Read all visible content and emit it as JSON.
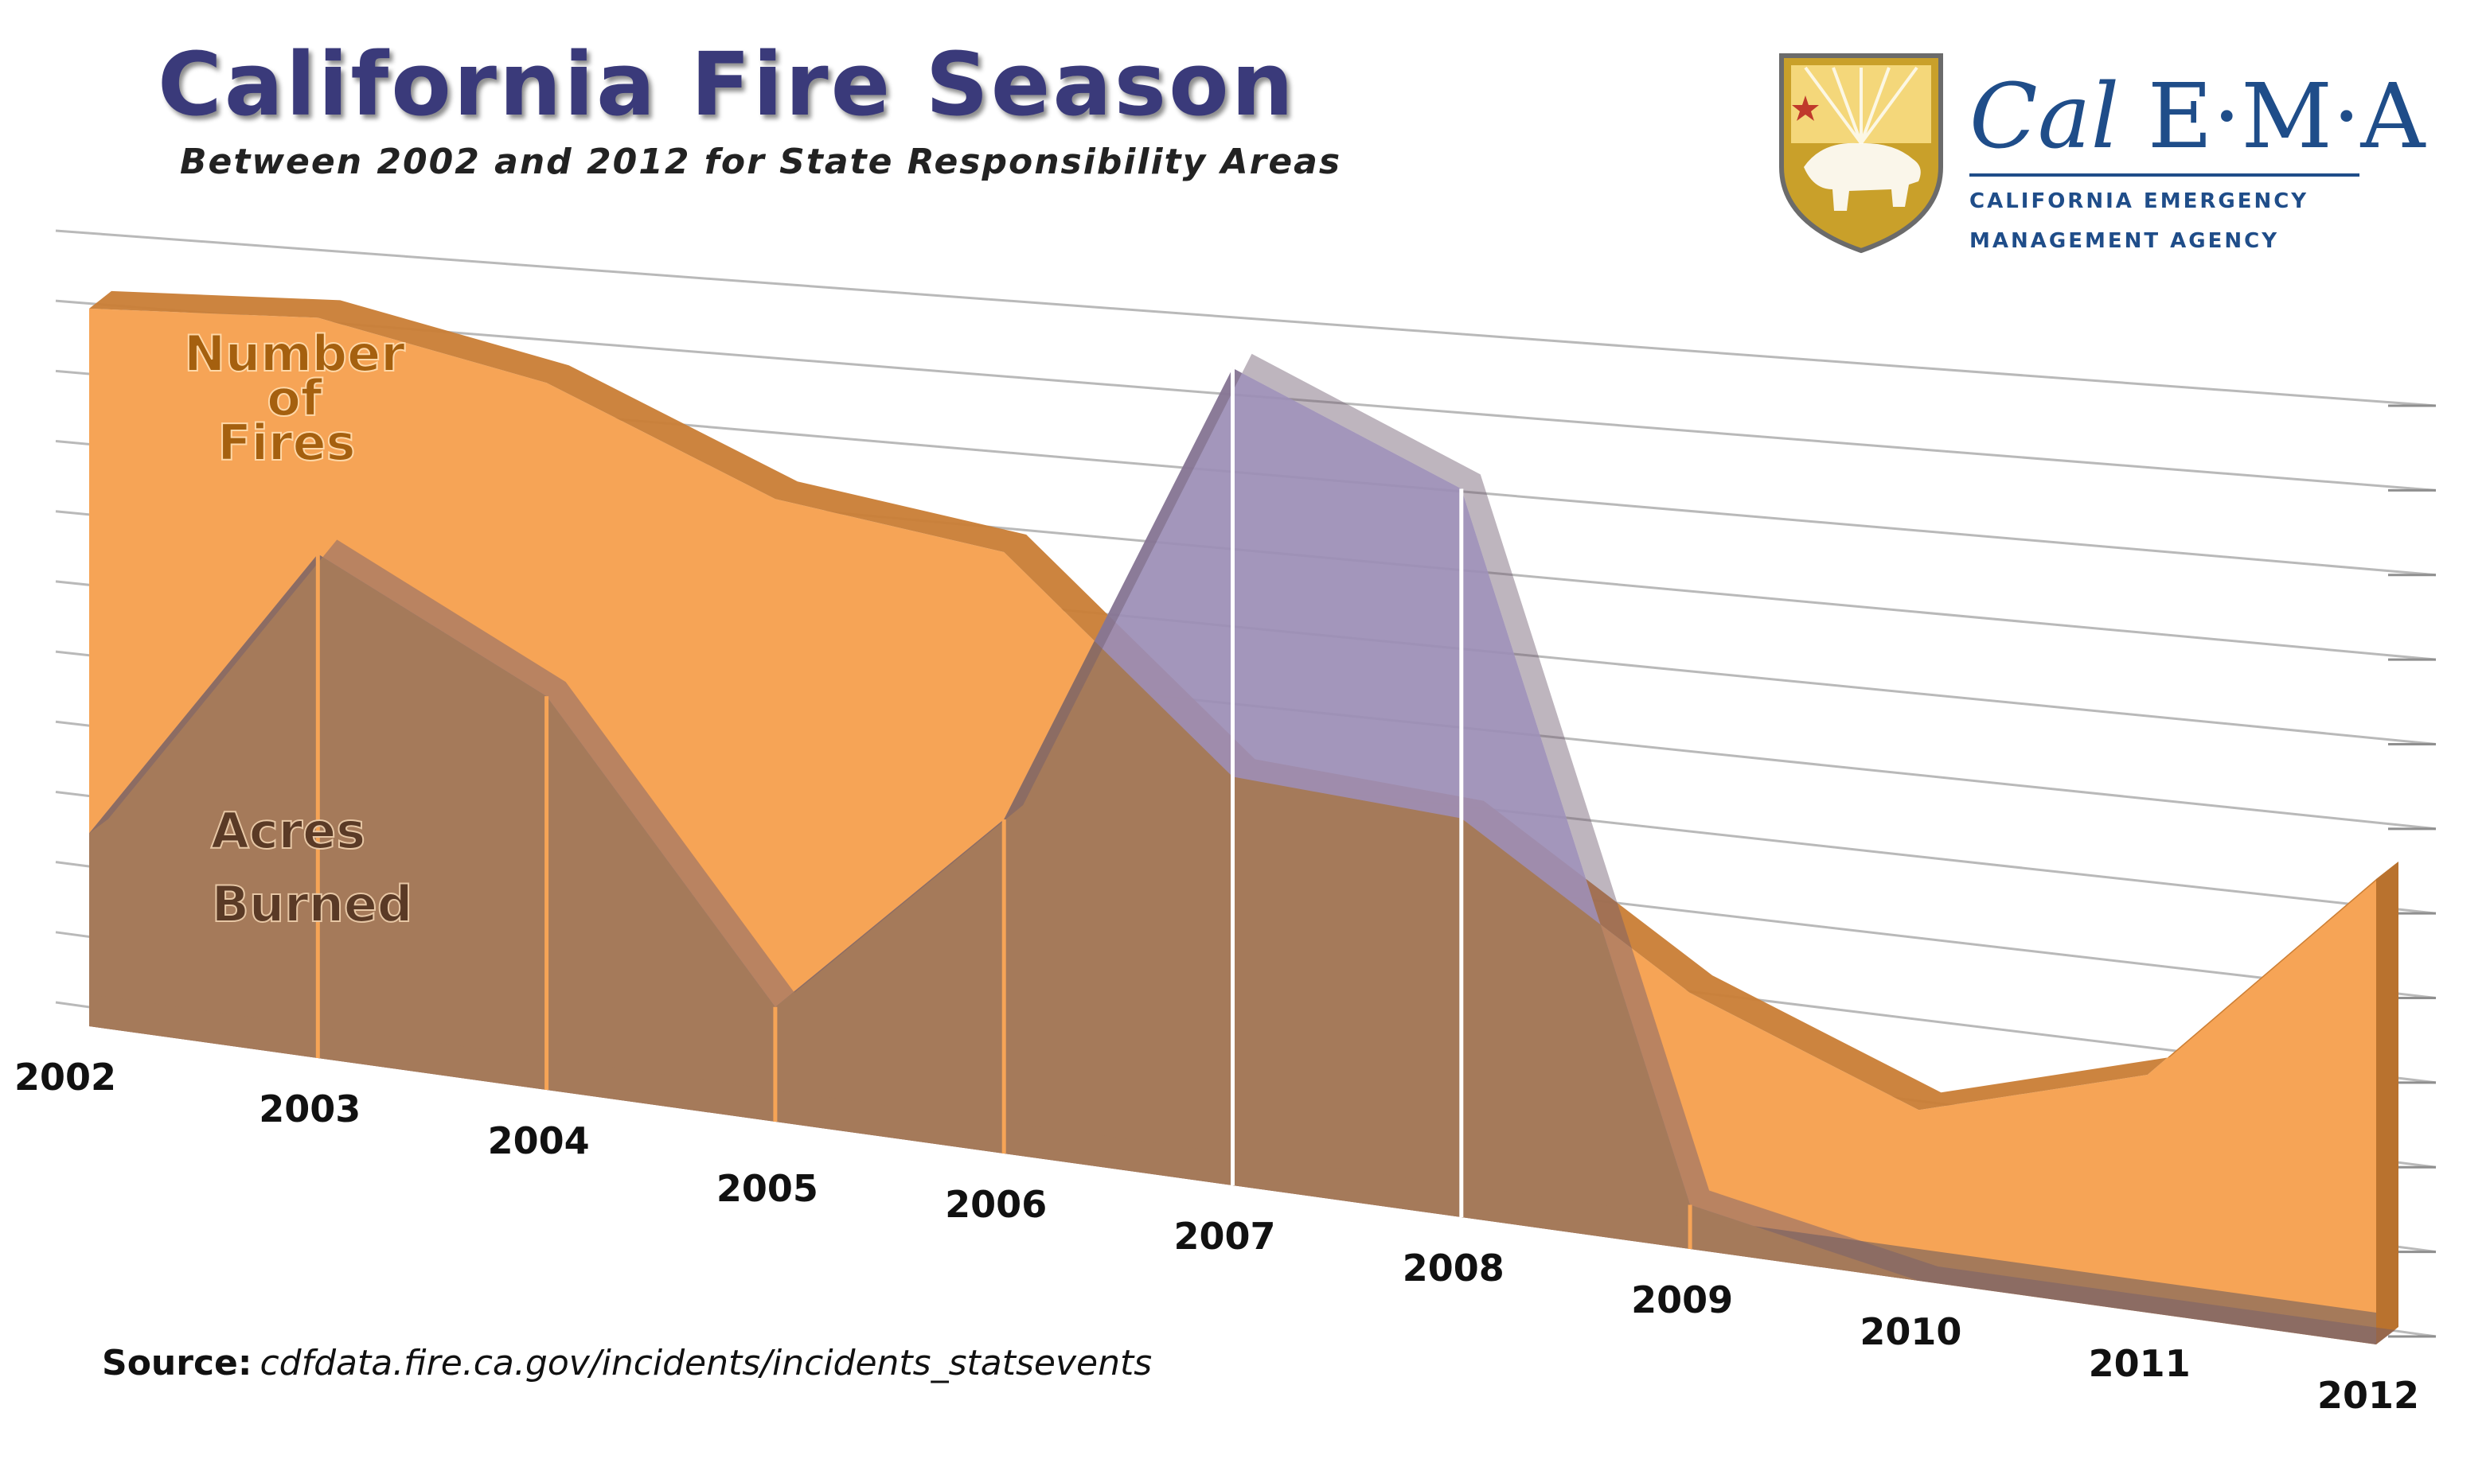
{
  "header": {
    "title": "California Fire Season",
    "subtitle": "Between 2002 and 2012 for State Responsibility Areas"
  },
  "logo": {
    "name_cal": "Cal",
    "name_ema": "E·M·A",
    "tagline_line1": "CALIFORNIA EMERGENCY",
    "tagline_line2": "MANAGEMENT AGENCY",
    "icon": "bear-shield-icon"
  },
  "footer": {
    "source_label": "Source:",
    "source_url": "cdfdata.fire.ca.gov/incidents/incidents_statsevents"
  },
  "chart_data": {
    "type": "area",
    "title": "California Fire Season",
    "subtitle": "Between 2002 and 2012 for State Responsibility Areas",
    "categories": [
      "2002",
      "2003",
      "2004",
      "2005",
      "2006",
      "2007",
      "2008",
      "2009",
      "2010",
      "2011",
      "2012"
    ],
    "series": [
      {
        "name": "Number of Fires",
        "label_lines": [
          "Number",
          "of",
          "Fires"
        ],
        "values": [
          93,
          94,
          88,
          76,
          72,
          48,
          46,
          29,
          19,
          26,
          50
        ],
        "color": "#f6a456",
        "edge_color": "#c97d35"
      },
      {
        "name": "Acres Burned",
        "label_lines": [
          "Acres",
          "Burned"
        ],
        "values": [
          25,
          64,
          49,
          14,
          40,
          96,
          84,
          5,
          0,
          0,
          0
        ],
        "color": "#a57a5a",
        "top_color": "#9b8db5",
        "edge_color": "#8a6a55"
      }
    ],
    "ylim": [
      0,
      100
    ],
    "xlabel": "",
    "ylabel": "",
    "grid": true,
    "legend": "inline labels at left"
  }
}
